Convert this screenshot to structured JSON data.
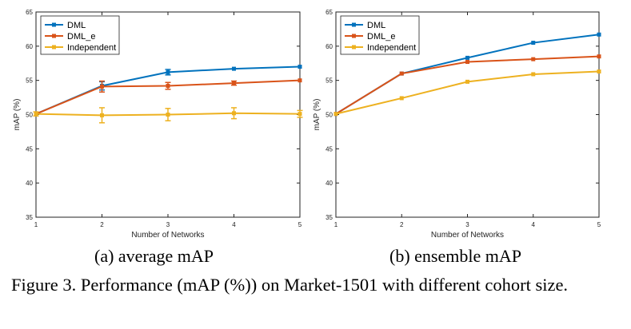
{
  "chart_data": [
    {
      "type": "line",
      "id": "a",
      "x": [
        1,
        2,
        3,
        4,
        5
      ],
      "xlabel": "Number of Networks",
      "ylabel": "mAP (%)",
      "xlim": [
        1,
        5
      ],
      "ylim": [
        35,
        65
      ],
      "xticks": [
        "1",
        "2",
        "3",
        "4",
        "5"
      ],
      "yticks": [
        "35",
        "40",
        "45",
        "50",
        "55",
        "60",
        "65"
      ],
      "legend_position": "top-left",
      "series": [
        {
          "name": "DML",
          "color": "#0072BD",
          "values": [
            50.1,
            54.2,
            56.2,
            56.7,
            57.0
          ],
          "errors": [
            0,
            0.6,
            0.4,
            0,
            0
          ]
        },
        {
          "name": "DML_e",
          "color": "#D95319",
          "values": [
            50.1,
            54.1,
            54.2,
            54.6,
            55.0
          ],
          "errors": [
            0,
            0.8,
            0.5,
            0.3,
            0
          ]
        },
        {
          "name": "Independent",
          "color": "#EDB120",
          "values": [
            50.1,
            49.9,
            50.0,
            50.2,
            50.1
          ],
          "errors": [
            0.3,
            1.1,
            0.9,
            0.8,
            0.5
          ]
        }
      ],
      "subcaption": "(a) average mAP"
    },
    {
      "type": "line",
      "id": "b",
      "x": [
        1,
        2,
        3,
        4,
        5
      ],
      "xlabel": "Number of Networks",
      "ylabel": "mAP (%)",
      "xlim": [
        1,
        5
      ],
      "ylim": [
        35,
        65
      ],
      "xticks": [
        "1",
        "2",
        "3",
        "4",
        "5"
      ],
      "yticks": [
        "35",
        "40",
        "45",
        "50",
        "55",
        "60",
        "65"
      ],
      "legend_position": "top-left",
      "series": [
        {
          "name": "DML",
          "color": "#0072BD",
          "values": [
            50.1,
            56.0,
            58.3,
            60.5,
            61.7
          ],
          "errors": [
            0,
            0,
            0,
            0,
            0
          ]
        },
        {
          "name": "DML_e",
          "color": "#D95319",
          "values": [
            50.1,
            56.0,
            57.7,
            58.1,
            58.5
          ],
          "errors": [
            0,
            0,
            0,
            0,
            0
          ]
        },
        {
          "name": "Independent",
          "color": "#EDB120",
          "values": [
            50.1,
            52.4,
            54.8,
            55.9,
            56.3
          ],
          "errors": [
            0,
            0,
            0,
            0,
            0
          ]
        }
      ],
      "subcaption": "(b) ensemble mAP"
    }
  ],
  "caption": "Figure 3. Performance (mAP (%)) on Market-1501 with different cohort size."
}
